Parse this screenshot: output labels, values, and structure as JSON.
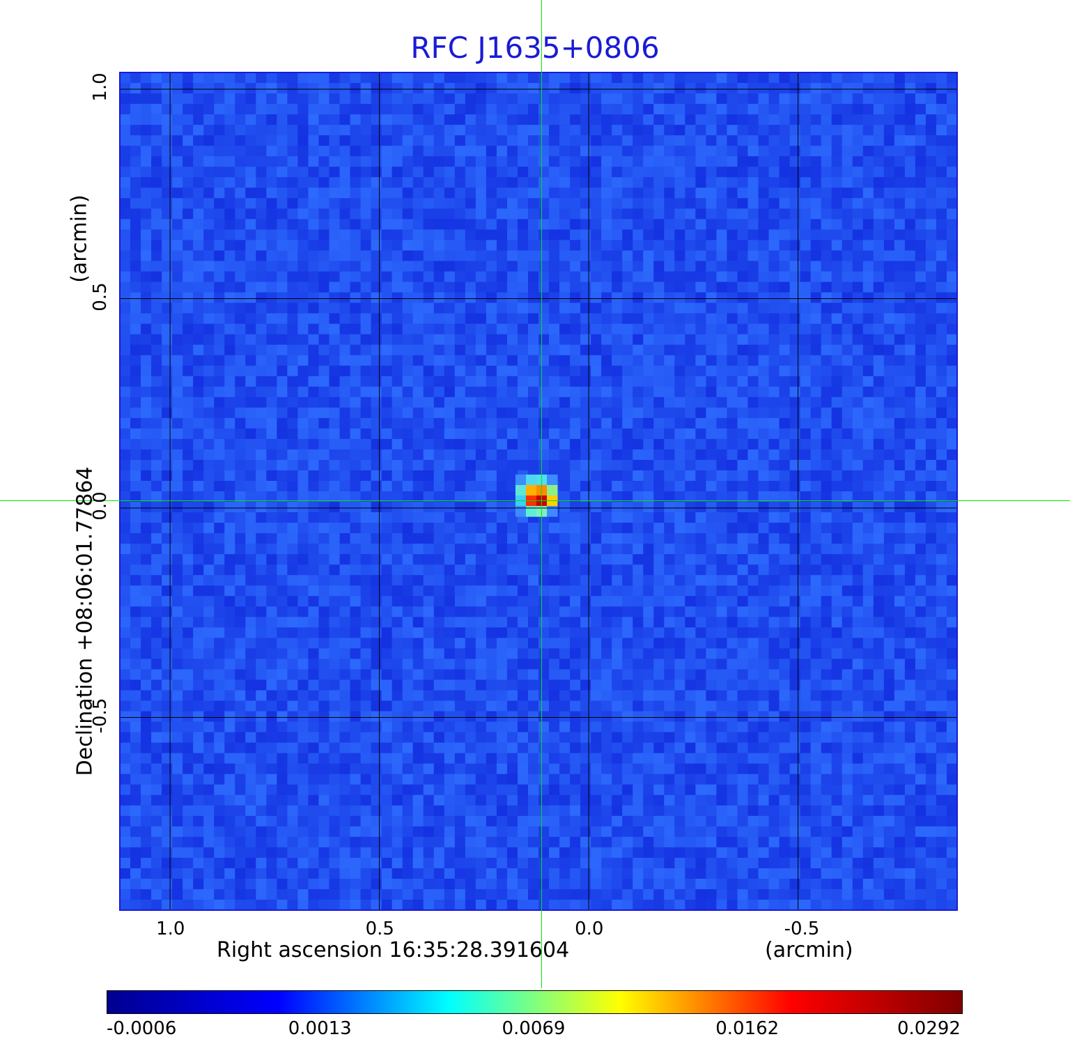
{
  "chart_data": {
    "type": "heatmap",
    "title": "RFC J1635+0806",
    "xlabel": "Right ascension  16:35:28.391604",
    "xunit": "(arcmin)",
    "ylabel": "Declination  +08:06:01.77864",
    "yunit": "(arcmin)",
    "x_ticks": [
      "1.0",
      "0.5",
      "0.0",
      "-0.5"
    ],
    "x_tick_values": [
      1.0,
      0.5,
      0.0,
      -0.5
    ],
    "y_ticks": [
      "1.0",
      "0.5",
      "0.0",
      "-0.5"
    ],
    "y_tick_values": [
      1.0,
      0.5,
      0.0,
      -0.5
    ],
    "xlim": [
      1.12,
      -0.88
    ],
    "ylim": [
      -0.96,
      1.04
    ],
    "grid": true,
    "source_peak": {
      "x": 0.125,
      "y": 0.03
    },
    "colorbar": {
      "tick_labels": [
        "-0.0006",
        "0.0013",
        "0.0069",
        "0.0162",
        "0.0292"
      ],
      "colors": [
        "#00008f",
        "#0000ff",
        "#00ffff",
        "#ffff00",
        "#ff0000",
        "#800000"
      ]
    },
    "colors": {
      "title": "#1a1ad6",
      "background": "#1f4cf2",
      "crosshair": "#00e600",
      "grid": "#000000"
    }
  }
}
